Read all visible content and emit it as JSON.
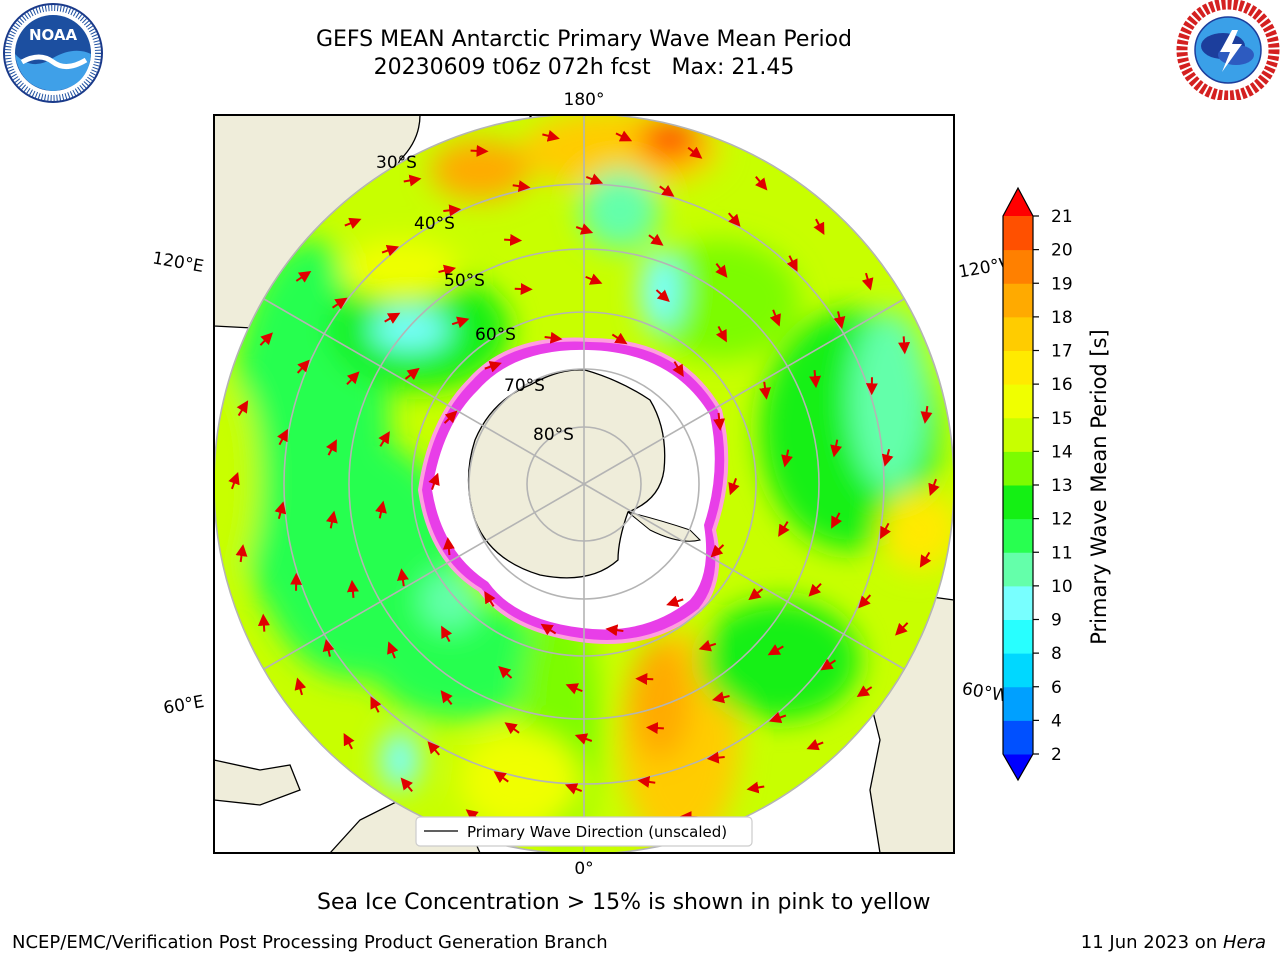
{
  "title": {
    "line1": "GEFS MEAN Antarctic Primary Wave Mean Period",
    "line2": "20230609 t06z 072h fcst   Max: 21.45"
  },
  "map": {
    "lon_labels": {
      "top": "180°",
      "bottom": "0°",
      "upper_left": "120°E",
      "upper_right": "120°W",
      "lower_left": "60°E",
      "lower_right": "60°W"
    },
    "lat_labels": [
      "30°S",
      "40°S",
      "50°S",
      "60°S",
      "70°S",
      "80°S"
    ],
    "legend": "Primary Wave Direction (unscaled)",
    "land_color": "#efedda",
    "ice_color": "#e83ee8"
  },
  "colorbar": {
    "label": "Primary Wave Mean Period [s]",
    "ticks": [
      "2",
      "4",
      "6",
      "8",
      "9",
      "10",
      "11",
      "12",
      "13",
      "14",
      "15",
      "16",
      "17",
      "18",
      "19",
      "20",
      "21"
    ],
    "colors": [
      "#0050ff",
      "#00a0ff",
      "#00d8ff",
      "#28ffff",
      "#78ffff",
      "#64ffaa",
      "#28ff50",
      "#14f014",
      "#7cfc00",
      "#c8ff00",
      "#f0ff00",
      "#ffea00",
      "#ffcc00",
      "#ffaa00",
      "#ff8000",
      "#ff5000",
      "#ff2000"
    ],
    "under_color": "#0000ff",
    "over_color": "#ff0000"
  },
  "logos": {
    "noaa": {
      "text": "NOAA",
      "ring": "NATIONAL OCEANIC AND ATMOSPHERIC ADMINISTRATION · U.S. DEPARTMENT OF COMMERCE"
    },
    "nws": {
      "ring": "NATIONAL WEATHER SERVICE"
    }
  },
  "notes": {
    "ice": "Sea Ice Concentration > 15% is shown in pink to yellow"
  },
  "footer": {
    "left": "NCEP/EMC/Verification Post Processing Product Generation Branch",
    "right_date": "11 Jun 2023 on ",
    "right_host": "Hera"
  }
}
